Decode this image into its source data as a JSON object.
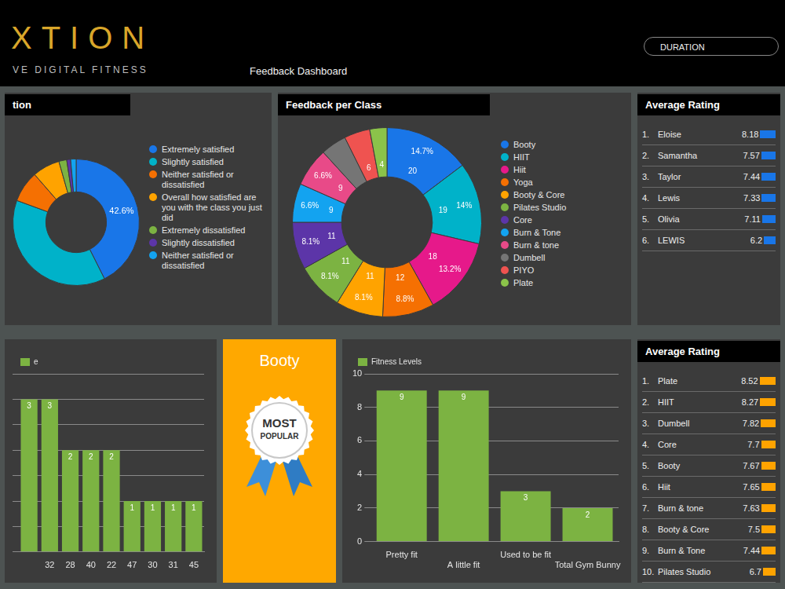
{
  "header": {
    "logo": "XTION",
    "tagline": "VE DIGITAL FITNESS",
    "title": "Feedback Dashboard",
    "filter": "DURATION"
  },
  "chart_data": [
    {
      "type": "doughnut",
      "title": "tion",
      "categories": [
        "Extremely satisfied",
        "Slightly satisfied",
        "Neither satisfied or dissatisfied",
        "Overall how satisfied are you with the class you just did",
        "Extremely dissatisfied",
        "Slightly dissatisfied",
        "Neither satisfied or dissatisfied"
      ],
      "values": [
        42.6,
        38,
        8,
        7,
        2,
        1,
        1.4
      ],
      "value_labels": [
        "42.6%",
        null,
        null,
        null,
        null,
        null,
        null
      ],
      "colors": [
        "#1976e8",
        "#00b2c9",
        "#f57002",
        "#ffa300",
        "#7cb342",
        "#5c35a8",
        "#13a3f0"
      ],
      "data_labels": true,
      "legend": "right"
    },
    {
      "type": "doughnut",
      "title": "Feedback per Class",
      "categories": [
        "Booty",
        "HIIT",
        "Hiit",
        "Yoga",
        "Booty & Core",
        "Pilates Studio",
        "Core",
        "Burn & Tone",
        "Burn & tone",
        "Dumbell",
        "PIYO",
        "Plate"
      ],
      "values": [
        20,
        19,
        18,
        12,
        11,
        11,
        11,
        9,
        9,
        6,
        6,
        4
      ],
      "value_labels": [
        "20",
        "19",
        "18",
        "12",
        "11",
        "11",
        "11",
        "9",
        "9",
        null,
        "6",
        "4"
      ],
      "percent_labels": [
        "14.7%",
        "14%",
        "13.2%",
        "8.8%",
        "8.1%",
        "8.1%",
        "8.1%",
        "6.6%",
        "6.6%",
        null,
        null,
        null
      ],
      "colors": [
        "#1976e8",
        "#00b2c9",
        "#e6198a",
        "#f57002",
        "#ffa300",
        "#7cb342",
        "#5c35a8",
        "#13a3f0",
        "#e84a88",
        "#757575",
        "#ef5350",
        "#8bc34a"
      ],
      "data_labels": true,
      "legend": "right"
    },
    {
      "type": "bar",
      "categories": [
        null,
        "32",
        "28",
        "40",
        "22",
        "47",
        "30",
        "31",
        "45"
      ],
      "series": [
        {
          "name": "e",
          "color": "#7cb342",
          "values": [
            3,
            3,
            2,
            2,
            2,
            1,
            1,
            1,
            1
          ]
        }
      ],
      "ylim": [
        0,
        3.5
      ],
      "yticks": [
        0,
        0.5,
        1,
        1.5,
        2,
        2.5,
        3,
        3.5
      ],
      "grid": true,
      "legend": "top-left",
      "data_labels": true,
      "tick_labels": "x"
    },
    {
      "type": "bar",
      "categories": [
        "Pretty fit",
        "A little fit",
        "Used to be fit",
        "Total Gym Bunny"
      ],
      "series": [
        {
          "name": "Fitness Levels",
          "color": "#7cb342",
          "values": [
            9,
            9,
            3,
            2
          ]
        }
      ],
      "ylim": [
        0,
        10
      ],
      "yticks": [
        0,
        2,
        4,
        6,
        8,
        10
      ],
      "grid": true,
      "legend": "top-left",
      "data_labels": true
    }
  ],
  "popular": {
    "name": "Booty",
    "badge": "MOST POPULAR"
  },
  "rankings": [
    {
      "title": "Average Rating",
      "color": "#1976e8",
      "rows": [
        {
          "rank": "1.",
          "name": "Eloise",
          "value": 8.18
        },
        {
          "rank": "2.",
          "name": "Samantha",
          "value": 7.57
        },
        {
          "rank": "3.",
          "name": "Taylor",
          "value": 7.44
        },
        {
          "rank": "4.",
          "name": "Lewis",
          "value": 7.33
        },
        {
          "rank": "5.",
          "name": "Olivia",
          "value": 7.11
        },
        {
          "rank": "6.",
          "name": "LEWIS",
          "value": 6.2
        }
      ]
    },
    {
      "title": "Average Rating",
      "color": "#ffa300",
      "rows": [
        {
          "rank": "1.",
          "name": "Plate",
          "value": 8.52
        },
        {
          "rank": "2.",
          "name": "HIIT",
          "value": 8.27
        },
        {
          "rank": "3.",
          "name": "Dumbell",
          "value": 7.82
        },
        {
          "rank": "4.",
          "name": "Core",
          "value": 7.7
        },
        {
          "rank": "5.",
          "name": "Booty",
          "value": 7.67
        },
        {
          "rank": "6.",
          "name": "Hiit",
          "value": 7.65
        },
        {
          "rank": "7.",
          "name": "Burn & tone",
          "value": 7.63
        },
        {
          "rank": "8.",
          "name": "Booty & Core",
          "value": 7.5
        },
        {
          "rank": "9.",
          "name": "Burn & Tone",
          "value": 7.44
        },
        {
          "rank": "10.",
          "name": "Pilates Studio",
          "value": 6.7
        }
      ]
    }
  ]
}
